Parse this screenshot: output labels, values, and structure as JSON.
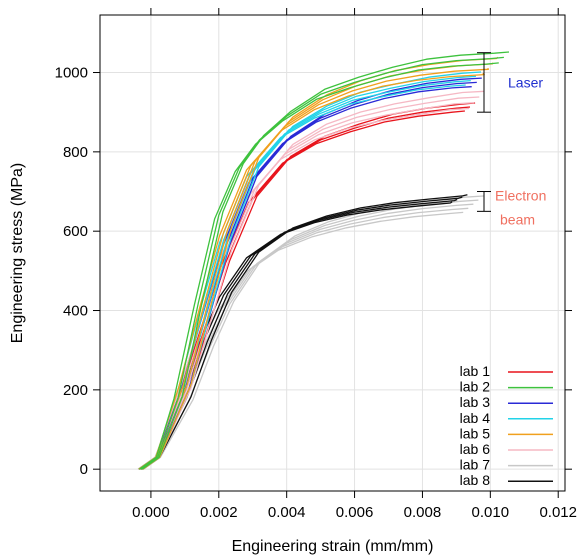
{
  "chart_data": {
    "type": "line",
    "title": "",
    "xlabel": "Engineering strain (mm/mm)",
    "ylabel": "Engineering stress (MPa)",
    "xlim": [
      -0.0015,
      0.0122
    ],
    "ylim": [
      -55,
      1145
    ],
    "x_ticks": [
      "0.000",
      "0.002",
      "0.004",
      "0.006",
      "0.008",
      "0.010",
      "0.012"
    ],
    "y_ticks": [
      "0",
      "200",
      "400",
      "600",
      "800",
      "1000"
    ],
    "grid": true,
    "legend_position": "bottom-right",
    "series": [
      {
        "name": "lab 1",
        "color": "#e8141c",
        "count": 3,
        "group": "laser",
        "final_x": 0.0094,
        "final_y": 910,
        "curve": [
          [
            -0.0003,
            0
          ],
          [
            0.0002,
            30
          ],
          [
            0.001,
            200
          ],
          [
            0.0016,
            360
          ],
          [
            0.0022,
            520
          ],
          [
            0.003,
            680
          ],
          [
            0.004,
            780
          ],
          [
            0.005,
            830
          ],
          [
            0.006,
            860
          ],
          [
            0.007,
            885
          ],
          [
            0.008,
            900
          ],
          [
            0.009,
            910
          ]
        ],
        "spread": 10
      },
      {
        "name": "lab 2",
        "color": "#3ec23e",
        "count": 3,
        "group": "laser",
        "final_x": 0.0104,
        "final_y": 1035,
        "curve": [
          [
            -0.0003,
            0
          ],
          [
            0.0002,
            30
          ],
          [
            0.0008,
            180
          ],
          [
            0.0014,
            420
          ],
          [
            0.002,
            640
          ],
          [
            0.0026,
            760
          ],
          [
            0.0032,
            830
          ],
          [
            0.004,
            890
          ],
          [
            0.005,
            945
          ],
          [
            0.006,
            975
          ],
          [
            0.007,
            1000
          ],
          [
            0.008,
            1020
          ],
          [
            0.009,
            1030
          ],
          [
            0.01,
            1035
          ]
        ],
        "spread": 12
      },
      {
        "name": "lab 3",
        "color": "#2a2ad6",
        "count": 3,
        "group": "laser",
        "final_x": 0.0096,
        "final_y": 975,
        "curve": [
          [
            -0.0003,
            0
          ],
          [
            0.0002,
            30
          ],
          [
            0.001,
            200
          ],
          [
            0.0016,
            380
          ],
          [
            0.0022,
            560
          ],
          [
            0.003,
            730
          ],
          [
            0.004,
            830
          ],
          [
            0.005,
            885
          ],
          [
            0.006,
            920
          ],
          [
            0.007,
            945
          ],
          [
            0.008,
            962
          ],
          [
            0.009,
            972
          ]
        ],
        "spread": 10
      },
      {
        "name": "lab 4",
        "color": "#22d3e8",
        "count": 4,
        "group": "laser",
        "final_x": 0.0095,
        "final_y": 985,
        "curve": [
          [
            -0.0003,
            0
          ],
          [
            0.0002,
            30
          ],
          [
            0.001,
            210
          ],
          [
            0.0016,
            400
          ],
          [
            0.0022,
            580
          ],
          [
            0.003,
            750
          ],
          [
            0.004,
            850
          ],
          [
            0.005,
            900
          ],
          [
            0.006,
            935
          ],
          [
            0.007,
            955
          ],
          [
            0.008,
            972
          ],
          [
            0.009,
            982
          ]
        ],
        "spread": 10
      },
      {
        "name": "lab 5",
        "color": "#f0a01e",
        "count": 4,
        "group": "laser",
        "final_x": 0.01,
        "final_y": 1015,
        "curve": [
          [
            -0.0003,
            0
          ],
          [
            0.0002,
            30
          ],
          [
            0.001,
            210
          ],
          [
            0.0016,
            410
          ],
          [
            0.0022,
            600
          ],
          [
            0.003,
            770
          ],
          [
            0.004,
            870
          ],
          [
            0.005,
            925
          ],
          [
            0.006,
            960
          ],
          [
            0.007,
            985
          ],
          [
            0.008,
            1000
          ],
          [
            0.009,
            1010
          ],
          [
            0.01,
            1015
          ]
        ],
        "spread": 12
      },
      {
        "name": "lab 6",
        "color": "#f5b8c4",
        "count": 4,
        "group": "laser",
        "final_x": 0.0096,
        "final_y": 930,
        "curve": [
          [
            -0.0003,
            0
          ],
          [
            0.0002,
            30
          ],
          [
            0.001,
            200
          ],
          [
            0.0016,
            370
          ],
          [
            0.0022,
            540
          ],
          [
            0.003,
            700
          ],
          [
            0.004,
            800
          ],
          [
            0.005,
            850
          ],
          [
            0.006,
            880
          ],
          [
            0.007,
            900
          ],
          [
            0.008,
            915
          ],
          [
            0.009,
            928
          ]
        ],
        "spread": 14
      },
      {
        "name": "lab 7",
        "color": "#c8c8c8",
        "count": 5,
        "group": "electron",
        "final_x": 0.0095,
        "final_y": 665,
        "curve": [
          [
            -0.0003,
            0
          ],
          [
            0.0002,
            30
          ],
          [
            0.001,
            170
          ],
          [
            0.0016,
            300
          ],
          [
            0.0022,
            410
          ],
          [
            0.003,
            510
          ],
          [
            0.004,
            570
          ],
          [
            0.005,
            605
          ],
          [
            0.006,
            628
          ],
          [
            0.007,
            645
          ],
          [
            0.008,
            657
          ],
          [
            0.009,
            665
          ]
        ],
        "spread": 14
      },
      {
        "name": "lab 8",
        "color": "#111111",
        "count": 4,
        "group": "electron",
        "final_x": 0.0091,
        "final_y": 680,
        "curve": [
          [
            -0.0003,
            0
          ],
          [
            0.0002,
            30
          ],
          [
            0.001,
            180
          ],
          [
            0.0016,
            320
          ],
          [
            0.0022,
            440
          ],
          [
            0.003,
            540
          ],
          [
            0.004,
            600
          ],
          [
            0.005,
            630
          ],
          [
            0.006,
            650
          ],
          [
            0.007,
            663
          ],
          [
            0.008,
            672
          ],
          [
            0.009,
            680
          ]
        ],
        "spread": 8
      }
    ],
    "annotations": [
      {
        "text": "Laser",
        "color": "#2030d0",
        "range": [
          900,
          1050
        ]
      },
      {
        "text": "Electron",
        "color": "#f07060",
        "range": [
          650,
          700
        ]
      },
      {
        "text": "beam",
        "color": "#f07060"
      }
    ]
  }
}
